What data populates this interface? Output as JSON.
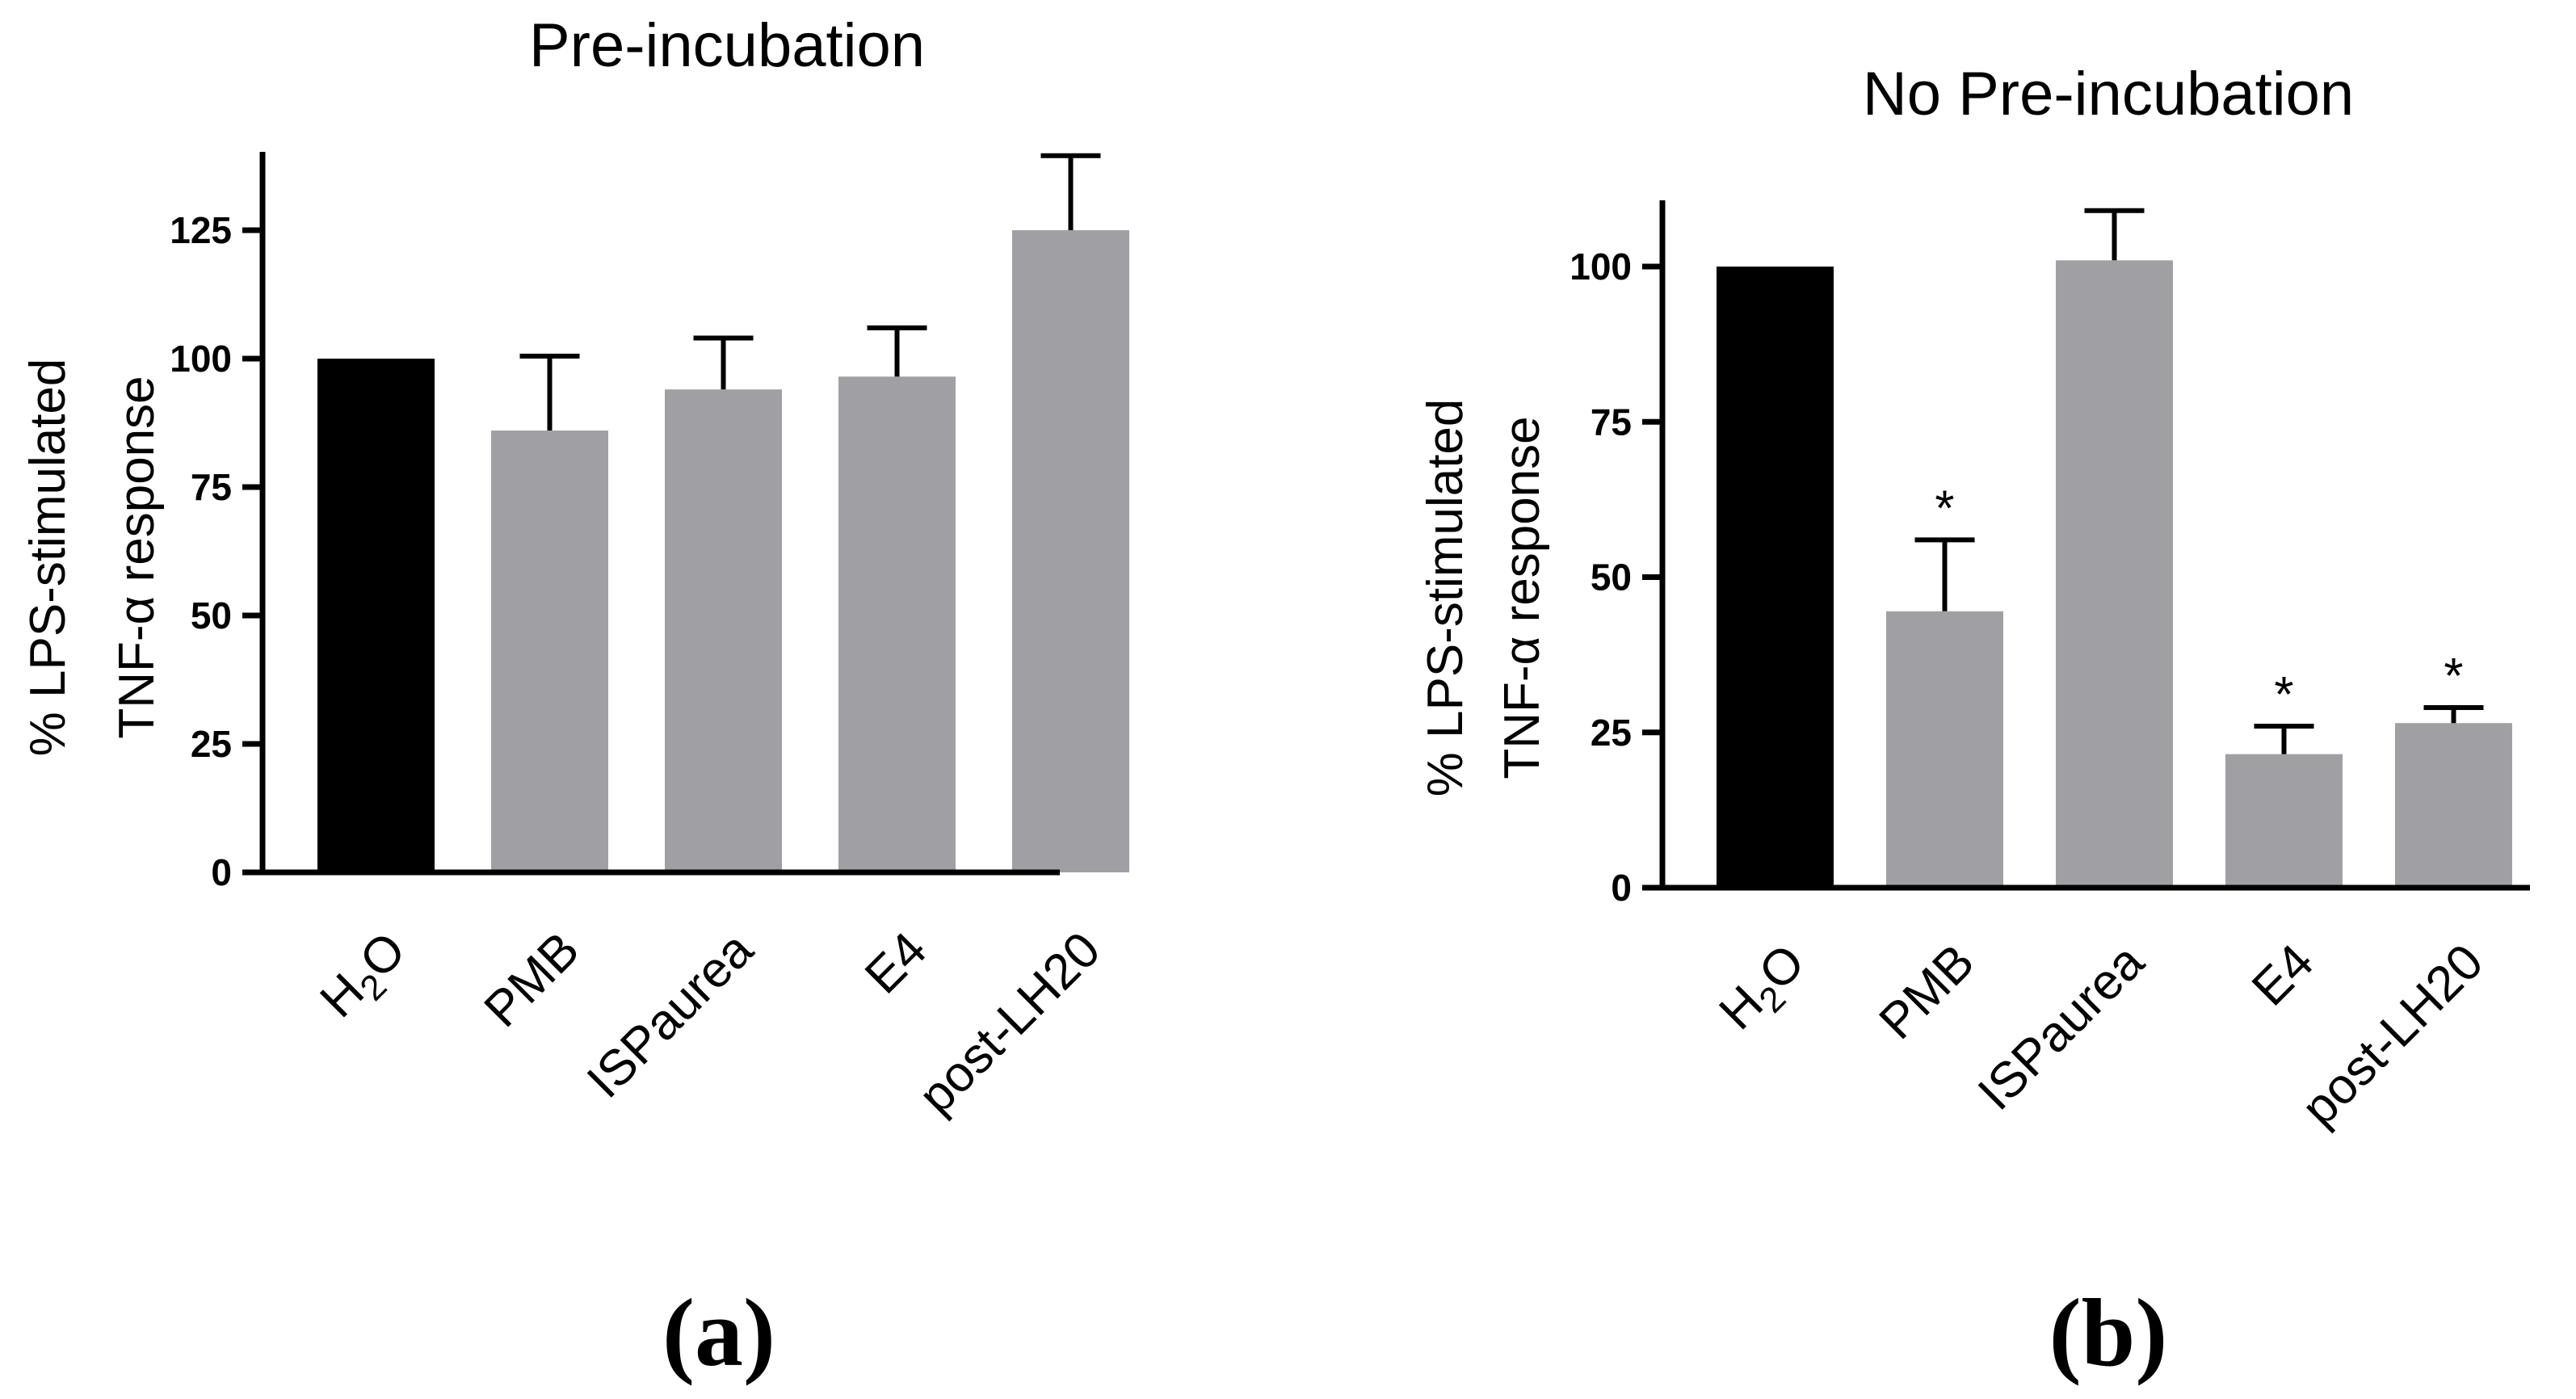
{
  "colors": {
    "control": "#000000",
    "treatment": "#a0a0a4"
  },
  "chart_data": [
    {
      "type": "bar",
      "title": "Pre-incubation",
      "ylabel_line1": "% LPS-stimulated",
      "ylabel_line2": "TNF-α response",
      "panel_label": "(a)",
      "categories": [
        "H2O",
        "PMB",
        "ISPaurea",
        "E4",
        "post-LH20"
      ],
      "values": [
        100,
        86,
        94,
        96.5,
        125
      ],
      "error_upper": [
        0,
        14.5,
        10,
        9.5,
        14.5
      ],
      "significance": [
        "",
        "",
        "",
        "",
        ""
      ],
      "ylim": [
        0,
        140
      ],
      "yticks": [
        0,
        25,
        50,
        75,
        100,
        125
      ],
      "ytick_labels": [
        "0",
        "25",
        "50",
        "75",
        "100",
        "125"
      ],
      "grid": false
    },
    {
      "type": "bar",
      "title": "No Pre-incubation",
      "ylabel_line1": "% LPS-stimulated",
      "ylabel_line2": "TNF-α response",
      "panel_label": "(b)",
      "categories": [
        "H2O",
        "PMB",
        "ISPaurea",
        "E4",
        "post-LH20"
      ],
      "values": [
        100,
        44.5,
        101,
        21.5,
        26.5
      ],
      "error_upper": [
        0,
        11.5,
        8,
        4.5,
        2.5
      ],
      "significance": [
        "",
        "*",
        "",
        "*",
        "*"
      ],
      "ylim": [
        0,
        110
      ],
      "yticks": [
        0,
        25,
        50,
        75,
        100
      ],
      "ytick_labels": [
        "0",
        "25",
        "50",
        "75",
        "100"
      ],
      "grid": false
    }
  ]
}
